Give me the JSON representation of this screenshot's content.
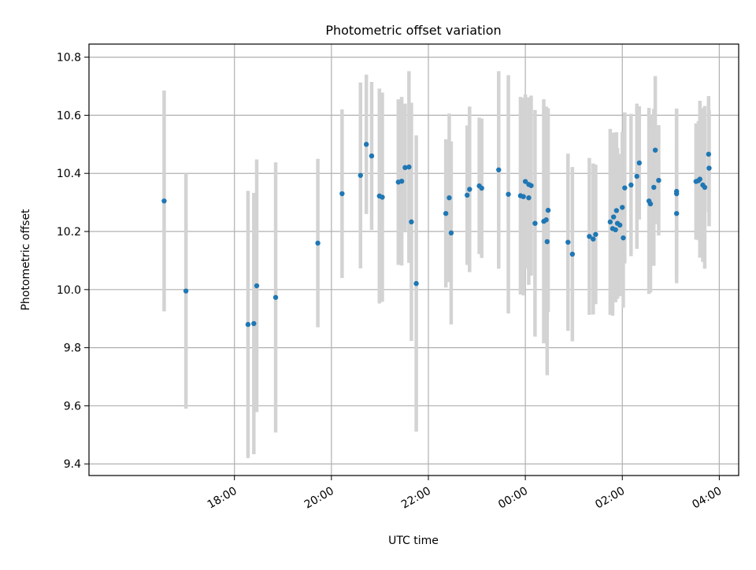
{
  "chart_data": {
    "type": "scatter",
    "title": "Photometric offset variation",
    "xlabel": "UTC time",
    "ylabel": "Photometric offset",
    "x_unit": "UTC hours (values past 24 are after midnight)",
    "xlim": [
      15.0,
      28.4
    ],
    "ylim": [
      9.36,
      10.845
    ],
    "x_ticks": [
      {
        "value": 18,
        "label": "18:00"
      },
      {
        "value": 20,
        "label": "20:00"
      },
      {
        "value": 22,
        "label": "22:00"
      },
      {
        "value": 24,
        "label": "00:00"
      },
      {
        "value": 26,
        "label": "02:00"
      },
      {
        "value": 28,
        "label": "04:00"
      }
    ],
    "y_ticks": [
      {
        "value": 9.4,
        "label": "9.4"
      },
      {
        "value": 9.6,
        "label": "9.6"
      },
      {
        "value": 9.8,
        "label": "9.8"
      },
      {
        "value": 10.0,
        "label": "10.0"
      },
      {
        "value": 10.2,
        "label": "10.2"
      },
      {
        "value": 10.4,
        "label": "10.4"
      },
      {
        "value": 10.6,
        "label": "10.6"
      },
      {
        "value": 10.8,
        "label": "10.8"
      }
    ],
    "grid": true,
    "colors": {
      "marker": "#1f77b4",
      "errorbar": "#d3d3d3",
      "grid": "#b0b0b0"
    },
    "points": [
      {
        "x": 16.55,
        "y": 10.305,
        "yerr": 0.38
      },
      {
        "x": 17.0,
        "y": 9.995,
        "yerr": 0.405
      },
      {
        "x": 18.28,
        "y": 9.88,
        "yerr": 0.46
      },
      {
        "x": 18.4,
        "y": 9.883,
        "yerr": 0.45
      },
      {
        "x": 18.46,
        "y": 10.013,
        "yerr": 0.435
      },
      {
        "x": 18.85,
        "y": 9.973,
        "yerr": 0.465
      },
      {
        "x": 19.72,
        "y": 10.16,
        "yerr": 0.29
      },
      {
        "x": 20.22,
        "y": 10.33,
        "yerr": 0.29
      },
      {
        "x": 20.6,
        "y": 10.393,
        "yerr": 0.32
      },
      {
        "x": 20.72,
        "y": 10.5,
        "yerr": 0.24
      },
      {
        "x": 20.83,
        "y": 10.46,
        "yerr": 0.255
      },
      {
        "x": 20.99,
        "y": 10.322,
        "yerr": 0.37
      },
      {
        "x": 21.05,
        "y": 10.318,
        "yerr": 0.36
      },
      {
        "x": 21.38,
        "y": 10.37,
        "yerr": 0.285
      },
      {
        "x": 21.45,
        "y": 10.373,
        "yerr": 0.29
      },
      {
        "x": 21.52,
        "y": 10.42,
        "yerr": 0.22
      },
      {
        "x": 21.6,
        "y": 10.422,
        "yerr": 0.33
      },
      {
        "x": 21.65,
        "y": 10.233,
        "yerr": 0.41
      },
      {
        "x": 21.75,
        "y": 10.021,
        "yerr": 0.51
      },
      {
        "x": 22.36,
        "y": 10.262,
        "yerr": 0.255
      },
      {
        "x": 22.43,
        "y": 10.316,
        "yerr": 0.29
      },
      {
        "x": 22.47,
        "y": 10.195,
        "yerr": 0.315
      },
      {
        "x": 22.8,
        "y": 10.325,
        "yerr": 0.24
      },
      {
        "x": 22.85,
        "y": 10.345,
        "yerr": 0.285
      },
      {
        "x": 23.05,
        "y": 10.357,
        "yerr": 0.235
      },
      {
        "x": 23.1,
        "y": 10.349,
        "yerr": 0.24
      },
      {
        "x": 23.45,
        "y": 10.412,
        "yerr": 0.34
      },
      {
        "x": 23.65,
        "y": 10.328,
        "yerr": 0.41
      },
      {
        "x": 23.9,
        "y": 10.323,
        "yerr": 0.34
      },
      {
        "x": 23.96,
        "y": 10.32,
        "yerr": 0.34
      },
      {
        "x": 24.0,
        "y": 10.372,
        "yerr": 0.3
      },
      {
        "x": 24.07,
        "y": 10.362,
        "yerr": 0.3
      },
      {
        "x": 24.12,
        "y": 10.358,
        "yerr": 0.31
      },
      {
        "x": 24.07,
        "y": 10.316,
        "yerr": 0.3
      },
      {
        "x": 24.2,
        "y": 10.228,
        "yerr": 0.39
      },
      {
        "x": 24.38,
        "y": 10.235,
        "yerr": 0.42
      },
      {
        "x": 24.43,
        "y": 10.24,
        "yerr": 0.39
      },
      {
        "x": 24.45,
        "y": 10.165,
        "yerr": 0.46
      },
      {
        "x": 24.47,
        "y": 10.273,
        "yerr": 0.35
      },
      {
        "x": 24.88,
        "y": 10.163,
        "yerr": 0.305
      },
      {
        "x": 24.97,
        "y": 10.122,
        "yerr": 0.3
      },
      {
        "x": 25.32,
        "y": 10.183,
        "yerr": 0.27
      },
      {
        "x": 25.4,
        "y": 10.174,
        "yerr": 0.26
      },
      {
        "x": 25.45,
        "y": 10.19,
        "yerr": 0.24
      },
      {
        "x": 25.75,
        "y": 10.233,
        "yerr": 0.32
      },
      {
        "x": 25.8,
        "y": 10.21,
        "yerr": 0.3
      },
      {
        "x": 25.82,
        "y": 10.25,
        "yerr": 0.29
      },
      {
        "x": 25.86,
        "y": 10.206,
        "yerr": 0.25
      },
      {
        "x": 25.88,
        "y": 10.272,
        "yerr": 0.27
      },
      {
        "x": 25.9,
        "y": 10.228,
        "yerr": 0.26
      },
      {
        "x": 25.95,
        "y": 10.222,
        "yerr": 0.245
      },
      {
        "x": 26.0,
        "y": 10.283,
        "yerr": 0.26
      },
      {
        "x": 26.02,
        "y": 10.178,
        "yerr": 0.24
      },
      {
        "x": 26.05,
        "y": 10.35,
        "yerr": 0.26
      },
      {
        "x": 26.18,
        "y": 10.36,
        "yerr": 0.245
      },
      {
        "x": 26.3,
        "y": 10.39,
        "yerr": 0.25
      },
      {
        "x": 26.35,
        "y": 10.436,
        "yerr": 0.195
      },
      {
        "x": 26.55,
        "y": 10.305,
        "yerr": 0.32
      },
      {
        "x": 26.58,
        "y": 10.295,
        "yerr": 0.305
      },
      {
        "x": 26.65,
        "y": 10.352,
        "yerr": 0.27
      },
      {
        "x": 26.68,
        "y": 10.48,
        "yerr": 0.255
      },
      {
        "x": 26.75,
        "y": 10.376,
        "yerr": 0.19
      },
      {
        "x": 27.12,
        "y": 10.338,
        "yerr": 0.285
      },
      {
        "x": 27.12,
        "y": 10.33,
        "yerr": 0.285
      },
      {
        "x": 27.12,
        "y": 10.262,
        "yerr": 0.24
      },
      {
        "x": 27.52,
        "y": 10.372,
        "yerr": 0.2
      },
      {
        "x": 27.57,
        "y": 10.375,
        "yerr": 0.205
      },
      {
        "x": 27.6,
        "y": 10.38,
        "yerr": 0.27
      },
      {
        "x": 27.66,
        "y": 10.36,
        "yerr": 0.265
      },
      {
        "x": 27.7,
        "y": 10.352,
        "yerr": 0.28
      },
      {
        "x": 27.78,
        "y": 10.466,
        "yerr": 0.2
      },
      {
        "x": 27.79,
        "y": 10.418,
        "yerr": 0.2
      }
    ]
  }
}
